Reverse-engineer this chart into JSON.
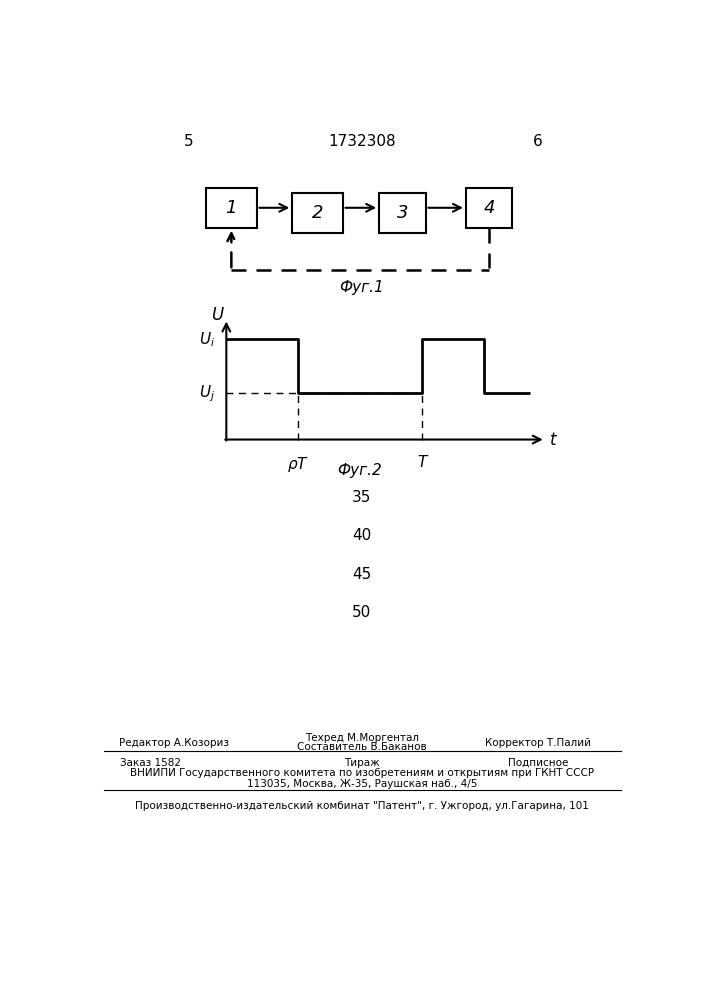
{
  "page_number_left": "5",
  "page_number_center": "1732308",
  "page_number_right": "6",
  "fig1_label": "Фуг.1",
  "fig2_label": "Фуг.2",
  "blocks": [
    "1",
    "2",
    "3",
    "4"
  ],
  "bg_color": "#ffffff",
  "line_color": "#000000",
  "numbers_mid": [
    "35",
    "40",
    "45",
    "50"
  ]
}
